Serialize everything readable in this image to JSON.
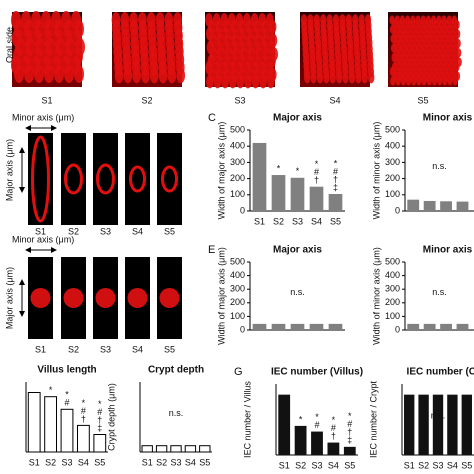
{
  "top_row": {
    "side_label": "Oral side",
    "labels": [
      "S1",
      "S2",
      "S3",
      "S4",
      "S5"
    ]
  },
  "villus_images": {
    "x_label": "Minor axis (μm)",
    "y_label": "Major axis (μm)",
    "labels": [
      "S1",
      "S2",
      "S3",
      "S4",
      "S5"
    ]
  },
  "crypt_images": {
    "x_label": "Minor axis (μm)",
    "y_label": "Major axis (μm)",
    "labels": [
      "S1",
      "S2",
      "S3",
      "S4",
      "S5"
    ]
  },
  "chart_data": [
    {
      "type": "bar",
      "panel": "C",
      "title": "Major axis",
      "y_label": "Width of major axis (μm)",
      "categories": [
        "S1",
        "S2",
        "S3",
        "S4",
        "S5"
      ],
      "values": [
        420,
        222,
        205,
        150,
        105
      ],
      "color": "#808080",
      "ylim": [
        0,
        500
      ],
      "yticks": [
        0,
        100,
        200,
        300,
        400,
        500
      ],
      "annotations": [
        [],
        [
          "*"
        ],
        [
          "*"
        ],
        [
          "*",
          "#",
          "†"
        ],
        [
          "*",
          "#",
          "†",
          "‡"
        ]
      ]
    },
    {
      "type": "bar",
      "title": "Minor axis",
      "y_label": "Width of minor axis (μm)",
      "categories": [
        null,
        null,
        null,
        null
      ],
      "values": [
        70,
        62,
        60,
        58
      ],
      "color": "#808080",
      "ylim": [
        0,
        500
      ],
      "yticks": [
        0,
        100,
        200,
        300,
        400,
        500
      ],
      "note": "n.s."
    },
    {
      "type": "bar",
      "panel": "E",
      "title": "Major axis",
      "y_label": "Width of major axis (μm)",
      "categories": [
        null,
        null,
        null,
        null,
        null
      ],
      "values": [
        45,
        45,
        45,
        45,
        45
      ],
      "color": "#808080",
      "ylim": [
        0,
        500
      ],
      "yticks": [
        0,
        100,
        200,
        300,
        400,
        500
      ],
      "note": "n.s."
    },
    {
      "type": "bar",
      "title": "Minor axis",
      "y_label": "Width of minor axis (μm)",
      "categories": [
        null,
        null,
        null,
        null
      ],
      "values": [
        45,
        45,
        45,
        45
      ],
      "color": "#808080",
      "ylim": [
        0,
        500
      ],
      "yticks": [
        0,
        100,
        200,
        300,
        400,
        500
      ],
      "note": "n.s."
    },
    {
      "type": "bar",
      "title": "Villus length",
      "categories": [
        "S1",
        "S2",
        "S3",
        "S4",
        "S5"
      ],
      "values": [
        85,
        79,
        61,
        38,
        25
      ],
      "color": "#ffffff",
      "ylim": [
        0,
        100
      ],
      "annotations": [
        [],
        [
          "*"
        ],
        [
          "*",
          "#"
        ],
        [
          "*",
          "#",
          "†"
        ],
        [
          "*",
          "#",
          "†",
          "‡"
        ]
      ]
    },
    {
      "type": "bar",
      "title": "Crypt depth",
      "y_label": "Crypt depth (μm)",
      "categories": [
        "S1",
        "S2",
        "S3",
        "S4",
        "S5"
      ],
      "values": [
        9,
        9,
        9,
        9,
        9
      ],
      "color": "#ffffff",
      "ylim": [
        0,
        100
      ],
      "note": "n.s."
    },
    {
      "type": "bar",
      "panel": "G",
      "title": "IEC number (Villus)",
      "y_label": "IEC number / Villus",
      "categories": [
        "S1",
        "S2",
        "S3",
        "S4",
        "S5"
      ],
      "values": [
        1700,
        820,
        660,
        350,
        230
      ],
      "color": "#111111",
      "ylim": [
        0,
        2000
      ],
      "annotations": [
        [],
        [
          "*"
        ],
        [
          "*",
          "#"
        ],
        [
          "*",
          "#",
          "†"
        ],
        [
          "*",
          "#",
          "†",
          "‡"
        ]
      ]
    },
    {
      "type": "bar",
      "title": "IEC number (Cry",
      "y_label": "IEC number / Crypt",
      "categories": [
        "S1",
        "S2",
        "S3",
        "S4",
        "S5"
      ],
      "values": [
        85,
        85,
        85,
        85,
        85
      ],
      "color": "#111111",
      "ylim": [
        0,
        100
      ],
      "note": "n.s."
    }
  ]
}
